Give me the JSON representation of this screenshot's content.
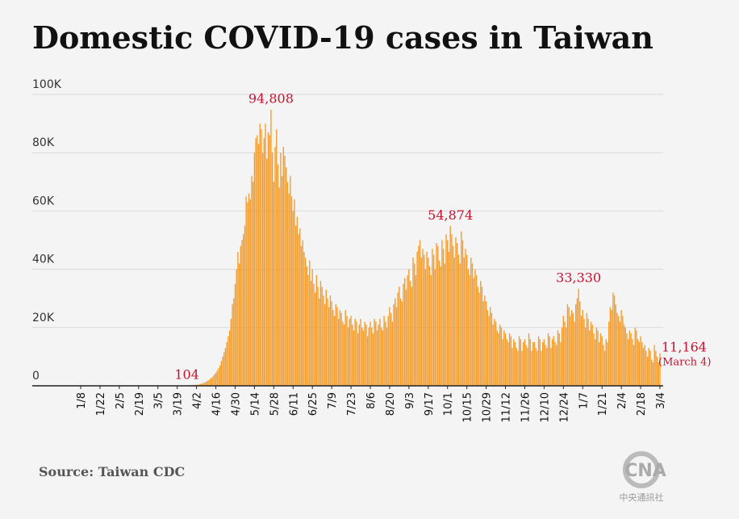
{
  "chart_data": {
    "type": "bar",
    "title": "Domestic COVID-19 cases in Taiwan",
    "source": "Source: Taiwan CDC",
    "logo": {
      "text": "CNA",
      "subtitle": "中央通訊社"
    },
    "color": "#f39c2b",
    "annotation_color": "#c8102e",
    "grid": true,
    "ylim": [
      0,
      100000
    ],
    "yticks": [
      0,
      {
        "value": 20000,
        "label": "20K"
      },
      {
        "value": 40000,
        "label": "40K"
      },
      {
        "value": 60000,
        "label": "60K"
      },
      {
        "value": 80000,
        "label": "80K"
      },
      {
        "value": 100000,
        "label": "100K"
      }
    ],
    "annotations": [
      {
        "label": "104",
        "value": 104
      },
      {
        "label": "94,808",
        "value": 94808
      },
      {
        "label": "54,874",
        "value": 54874
      },
      {
        "label": "33,330",
        "value": 33330
      },
      {
        "label": "11,164",
        "value": 11164,
        "note": "(March 4)"
      }
    ],
    "categories": [
      "1/8",
      null,
      null,
      null,
      null,
      null,
      null,
      null,
      null,
      null,
      null,
      null,
      null,
      null,
      "1/22",
      null,
      null,
      null,
      null,
      null,
      null,
      null,
      null,
      null,
      null,
      null,
      null,
      null,
      "2/5",
      null,
      null,
      null,
      null,
      null,
      null,
      null,
      null,
      null,
      null,
      null,
      null,
      null,
      "2/19",
      null,
      null,
      null,
      null,
      null,
      null,
      null,
      null,
      null,
      null,
      null,
      null,
      null,
      "3/5",
      null,
      null,
      null,
      null,
      null,
      null,
      null,
      null,
      null,
      null,
      null,
      null,
      null,
      "3/19",
      null,
      null,
      null,
      null,
      null,
      null,
      null,
      null,
      null,
      null,
      null,
      null,
      null,
      "4/2",
      null,
      null,
      null,
      null,
      null,
      null,
      null,
      null,
      null,
      null,
      null,
      null,
      null,
      "4/16",
      null,
      null,
      null,
      null,
      null,
      null,
      null,
      null,
      null,
      null,
      null,
      null,
      null,
      "4/30",
      null,
      null,
      null,
      null,
      null,
      null,
      null,
      null,
      null,
      null,
      null,
      null,
      null,
      "5/14",
      null,
      null,
      null,
      null,
      null,
      null,
      null,
      null,
      null,
      null,
      null,
      null,
      null,
      "5/28",
      null,
      null,
      null,
      null,
      null,
      null,
      null,
      null,
      null,
      null,
      null,
      null,
      null,
      "6/11",
      null,
      null,
      null,
      null,
      null,
      null,
      null,
      null,
      null,
      null,
      null,
      null,
      null,
      "6/25",
      null,
      null,
      null,
      null,
      null,
      null,
      null,
      null,
      null,
      null,
      null,
      null,
      null,
      "7/9",
      null,
      null,
      null,
      null,
      null,
      null,
      null,
      null,
      null,
      null,
      null,
      null,
      null,
      "7/23",
      null,
      null,
      null,
      null,
      null,
      null,
      null,
      null,
      null,
      null,
      null,
      null,
      null,
      "8/6",
      null,
      null,
      null,
      null,
      null,
      null,
      null,
      null,
      null,
      null,
      null,
      null,
      null,
      "8/20",
      null,
      null,
      null,
      null,
      null,
      null,
      null,
      null,
      null,
      null,
      null,
      null,
      null,
      "9/3",
      null,
      null,
      null,
      null,
      null,
      null,
      null,
      null,
      null,
      null,
      null,
      null,
      null,
      "9/17",
      null,
      null,
      null,
      null,
      null,
      null,
      null,
      null,
      null,
      null,
      null,
      null,
      null,
      "10/1",
      null,
      null,
      null,
      null,
      null,
      null,
      null,
      null,
      null,
      null,
      null,
      null,
      null,
      "10/15",
      null,
      null,
      null,
      null,
      null,
      null,
      null,
      null,
      null,
      null,
      null,
      null,
      null,
      "10/29",
      null,
      null,
      null,
      null,
      null,
      null,
      null,
      null,
      null,
      null,
      null,
      null,
      null,
      "11/12",
      null,
      null,
      null,
      null,
      null,
      null,
      null,
      null,
      null,
      null,
      null,
      null,
      null,
      "11/26",
      null,
      null,
      null,
      null,
      null,
      null,
      null,
      null,
      null,
      null,
      null,
      null,
      null,
      "12/10",
      null,
      null,
      null,
      null,
      null,
      null,
      null,
      null,
      null,
      null,
      null,
      null,
      null,
      "12/24",
      null,
      null,
      null,
      null,
      null,
      null,
      null,
      null,
      null,
      null,
      null,
      null,
      null,
      "1/7",
      null,
      null,
      null,
      null,
      null,
      null,
      null,
      null,
      null,
      null,
      null,
      null,
      null,
      "1/21",
      null,
      null,
      null,
      null,
      null,
      null,
      null,
      null,
      null,
      null,
      null,
      null,
      null,
      "2/4",
      null,
      null,
      null,
      null,
      null,
      null,
      null,
      null,
      null,
      null,
      null,
      null,
      null,
      "2/18",
      null,
      null,
      null,
      null,
      null,
      null,
      null,
      null,
      null,
      null,
      null,
      null,
      null,
      "3/4"
    ],
    "values": [
      12,
      8,
      15,
      22,
      10,
      18,
      14,
      20,
      25,
      16,
      30,
      12,
      9,
      18,
      15,
      22,
      28,
      18,
      10,
      14,
      20,
      8,
      12,
      16,
      24,
      19,
      7,
      11,
      5,
      9,
      14,
      10,
      6,
      12,
      8,
      10,
      15,
      20,
      13,
      9,
      7,
      18,
      14,
      11,
      22,
      25,
      30,
      18,
      12,
      20,
      28,
      35,
      26,
      15,
      22,
      30,
      38,
      24,
      19,
      45,
      52,
      34,
      28,
      40,
      55,
      60,
      47,
      38,
      51,
      63,
      70,
      58,
      49,
      66,
      80,
      90,
      85,
      104,
      120,
      160,
      210,
      260,
      300,
      390,
      300,
      400,
      500,
      650,
      800,
      950,
      1200,
      1400,
      1700,
      2000,
      2400,
      2800,
      3300,
      3900,
      4500,
      5200,
      6000,
      7000,
      8500,
      10000,
      11500,
      13000,
      15000,
      17000,
      19000,
      23000,
      28000,
      30000,
      35000,
      40000,
      46000,
      42000,
      48000,
      50000,
      52000,
      55000,
      65000,
      63000,
      66000,
      64000,
      72000,
      70000,
      80000,
      85000,
      86000,
      83000,
      90000,
      88000,
      80000,
      85000,
      90000,
      78000,
      87000,
      86000,
      94808,
      80000,
      70000,
      82000,
      88000,
      76000,
      68000,
      80000,
      72000,
      82000,
      79000,
      75000,
      70000,
      66000,
      72000,
      65000,
      60000,
      64000,
      55000,
      58000,
      52000,
      54000,
      48000,
      50000,
      46000,
      44000,
      41000,
      38000,
      43000,
      36000,
      40000,
      35000,
      32000,
      38000,
      34000,
      30000,
      36000,
      34000,
      31000,
      28000,
      33000,
      30000,
      27000,
      31000,
      29000,
      26000,
      24000,
      28000,
      27000,
      23000,
      26000,
      25000,
      22000,
      21000,
      26000,
      24000,
      20000,
      23000,
      24000,
      21000,
      19000,
      23000,
      22000,
      18000,
      21000,
      23000,
      20000,
      19000,
      22000,
      21000,
      17000,
      20000,
      22000,
      20000,
      18000,
      23000,
      22000,
      19000,
      21000,
      23000,
      20000,
      19000,
      24000,
      22000,
      20000,
      24000,
      27000,
      25000,
      22000,
      28000,
      30000,
      27000,
      32000,
      34000,
      30000,
      29000,
      35000,
      37000,
      33000,
      38000,
      40000,
      36000,
      34000,
      44000,
      42000,
      38000,
      46000,
      48000,
      50000,
      44000,
      47000,
      45000,
      40000,
      46000,
      44000,
      41000,
      38000,
      47000,
      45000,
      40000,
      49000,
      48000,
      43000,
      41000,
      50000,
      47000,
      42000,
      52000,
      50000,
      46000,
      54874,
      52000,
      48000,
      44000,
      51000,
      49000,
      45000,
      42000,
      53000,
      50000,
      44000,
      47000,
      45000,
      40000,
      38000,
      44000,
      42000,
      37000,
      40000,
      38000,
      34000,
      32000,
      36000,
      34000,
      29000,
      31000,
      29000,
      26000,
      24000,
      27000,
      25000,
      21000,
      23000,
      22000,
      19000,
      18000,
      21000,
      20000,
      16000,
      19000,
      18000,
      16000,
      15000,
      18000,
      17000,
      13000,
      16000,
      15000,
      13000,
      12000,
      17000,
      16000,
      12000,
      15000,
      16000,
      14000,
      13000,
      18000,
      16000,
      12000,
      15000,
      15000,
      13000,
      12000,
      17000,
      16000,
      12000,
      15000,
      16000,
      14000,
      13000,
      18000,
      17000,
      13000,
      16000,
      17000,
      15000,
      14000,
      19000,
      18000,
      15000,
      20000,
      24000,
      22000,
      20000,
      28000,
      27000,
      24000,
      26000,
      25000,
      22000,
      28000,
      30000,
      33330,
      29000,
      24000,
      26000,
      23000,
      20000,
      25000,
      23000,
      19000,
      22000,
      21000,
      18000,
      16000,
      20000,
      19000,
      15000,
      18000,
      17000,
      14000,
      12000,
      16000,
      15000,
      22000,
      27000,
      26000,
      32000,
      31000,
      28000,
      25000,
      24000,
      22000,
      26000,
      24000,
      21000,
      20000,
      18000,
      16000,
      19000,
      18000,
      16000,
      14000,
      20000,
      19000,
      16000,
      15000,
      17000,
      15000,
      13000,
      14000,
      12000,
      10000,
      13000,
      12000,
      9000,
      8000,
      14000,
      12000,
      10000,
      8000,
      11164
    ]
  }
}
